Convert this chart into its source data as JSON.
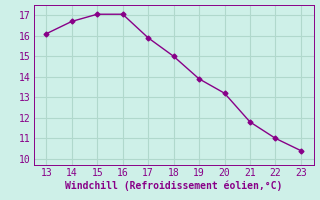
{
  "x": [
    13,
    14,
    15,
    16,
    17,
    18,
    19,
    20,
    21,
    22,
    23
  ],
  "y": [
    16.1,
    16.7,
    17.05,
    17.05,
    15.9,
    15.0,
    13.9,
    13.2,
    11.8,
    11.0,
    10.4
  ],
  "xlim": [
    12.5,
    23.5
  ],
  "ylim": [
    9.7,
    17.5
  ],
  "xticks": [
    13,
    14,
    15,
    16,
    17,
    18,
    19,
    20,
    21,
    22,
    23
  ],
  "yticks": [
    10,
    11,
    12,
    13,
    14,
    15,
    16,
    17
  ],
  "xlabel": "Windchill (Refroidissement éolien,°C)",
  "line_color": "#880088",
  "bg_color": "#cef0e8",
  "grid_color": "#b0d8cc",
  "xlabel_fontsize": 7,
  "tick_fontsize": 7,
  "line_width": 1.0,
  "marker": "D",
  "marker_size": 2.5
}
